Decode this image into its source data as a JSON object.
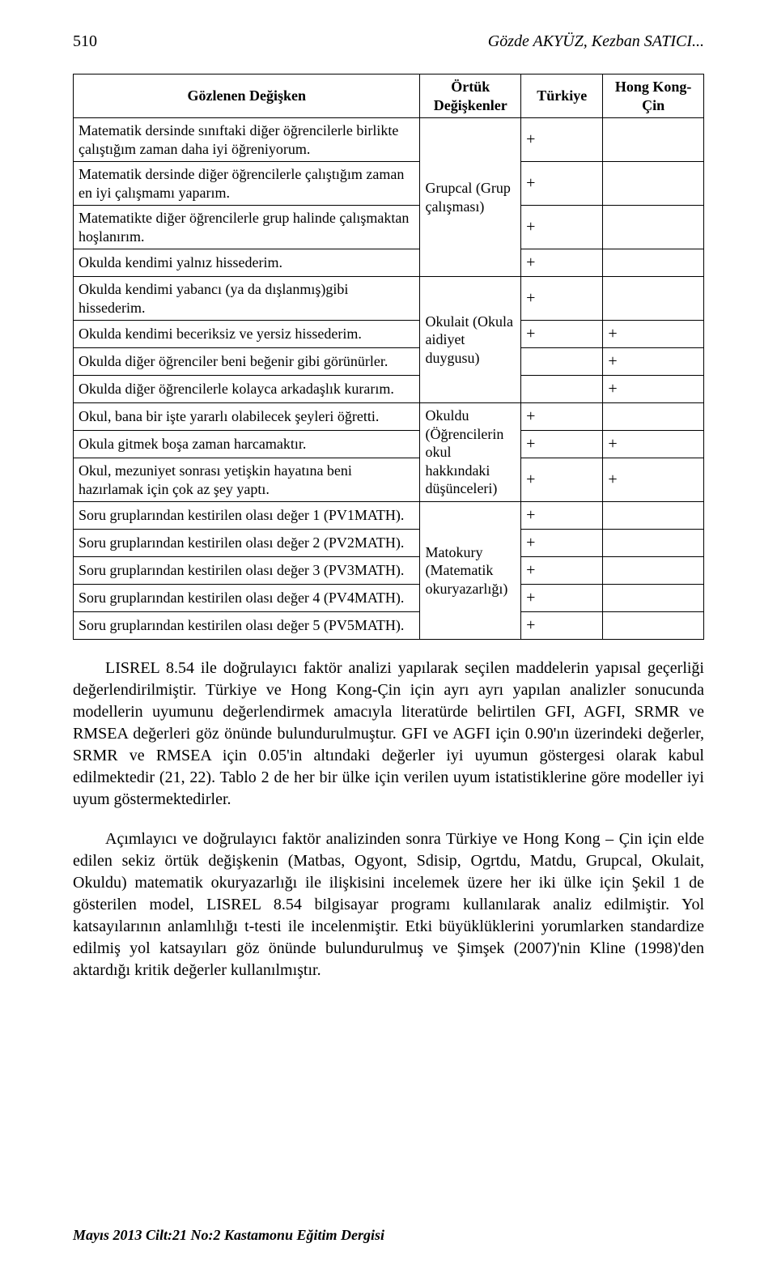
{
  "header": {
    "page_number": "510",
    "authors": "Gözde AKYÜZ, Kezban SATICI..."
  },
  "table": {
    "head": {
      "var": "Gözlenen Değişken",
      "latent": "Örtük Değişkenler",
      "turkey": "Türkiye",
      "hk": "Hong Kong-Çin"
    },
    "groups": [
      {
        "latent": "Grupcal (Grup çalışması)",
        "rows": [
          {
            "text": "Matematik dersinde sınıftaki diğer öğrencilerle birlikte çalıştığım zaman daha iyi öğreniyorum.",
            "tr": "+",
            "hk": ""
          },
          {
            "text": "Matematik dersinde diğer öğrencilerle çalıştığım zaman en iyi çalışmamı yaparım.",
            "tr": "+",
            "hk": ""
          },
          {
            "text": "Matematikte diğer öğrencilerle grup halinde çalışmaktan hoşlanırım.",
            "tr": "+",
            "hk": ""
          },
          {
            "text": "Okulda kendimi yalnız hissederim.",
            "tr": "+",
            "hk": ""
          }
        ]
      },
      {
        "latent": "Okulait (Okula aidiyet duygusu)",
        "rows": [
          {
            "text": "Okulda kendimi yabancı (ya da dışlanmış)gibi hissederim.",
            "tr": "+",
            "hk": ""
          },
          {
            "text": "Okulda kendimi beceriksiz ve yersiz hissederim.",
            "tr": "+",
            "hk": "+"
          },
          {
            "text": "Okulda diğer öğrenciler beni beğenir gibi görünürler.",
            "tr": "",
            "hk": "+"
          },
          {
            "text": "Okulda diğer öğrencilerle kolayca arkadaşlık kurarım.",
            "tr": "",
            "hk": "+"
          }
        ]
      },
      {
        "latent": "Okuldu (Öğrencilerin okul hakkındaki düşünceleri)",
        "rows": [
          {
            "text": "Okul, bana bir işte yararlı olabilecek şeyleri öğretti.",
            "tr": "+",
            "hk": ""
          },
          {
            "text": "Okula gitmek boşa zaman harcamaktır.",
            "tr": "+",
            "hk": "+"
          },
          {
            "text": "Okul, mezuniyet sonrası yetişkin hayatına beni hazırlamak için çok az şey yaptı.",
            "tr": "+",
            "hk": "+"
          }
        ]
      },
      {
        "latent": "Matokury (Matematik okuryazarlığı)",
        "rows": [
          {
            "text": "Soru gruplarından kestirilen olası değer 1 (PV1MATH).",
            "tr": "+",
            "hk": ""
          },
          {
            "text": "Soru gruplarından kestirilen olası değer 2 (PV2MATH).",
            "tr": "+",
            "hk": ""
          },
          {
            "text": "Soru gruplarından kestirilen olası değer 3 (PV3MATH).",
            "tr": "+",
            "hk": ""
          },
          {
            "text": "Soru gruplarından kestirilen olası değer 4 (PV4MATH).",
            "tr": "+",
            "hk": ""
          },
          {
            "text": "Soru gruplarından kestirilen olası değer 5 (PV5MATH).",
            "tr": "+",
            "hk": ""
          }
        ]
      }
    ]
  },
  "paragraphs": {
    "p1": "LISREL 8.54 ile doğrulayıcı faktör analizi yapılarak seçilen maddelerin yapısal geçerliği değerlendirilmiştir. Türkiye ve Hong Kong-Çin için ayrı ayrı yapılan analizler sonucunda modellerin uyumunu değerlendirmek amacıyla literatürde belirtilen GFI, AGFI, SRMR ve RMSEA değerleri göz önünde bulundurulmuştur. GFI ve AGFI için 0.90'ın üzerindeki değerler, SRMR ve RMSEA için 0.05'in altındaki değerler iyi uyumun göstergesi olarak kabul edilmektedir (21, 22). Tablo 2 de her bir ülke için verilen uyum istatistiklerine göre modeller iyi uyum göstermektedirler.",
    "p2": "Açımlayıcı ve doğrulayıcı faktör analizinden sonra Türkiye ve Hong Kong – Çin için elde edilen sekiz örtük değişkenin (Matbas, Ogyont, Sdisip, Ogrtdu, Matdu, Grupcal, Okulait, Okuldu) matematik okuryazarlığı ile ilişkisini incelemek üzere her iki ülke için Şekil 1 de gösterilen model, LISREL 8.54 bilgisayar programı kullanılarak analiz edilmiştir. Yol katsayılarının anlamlılığı t-testi ile incelenmiştir. Etki büyüklüklerini yorumlarken standardize edilmiş yol katsayıları göz önünde bulundurulmuş ve Şimşek (2007)'nin Kline (1998)'den aktardığı kritik değerler kullanılmıştır."
  },
  "footer": "Mayıs 2013 Cilt:21 No:2 Kastamonu Eğitim Dergisi"
}
